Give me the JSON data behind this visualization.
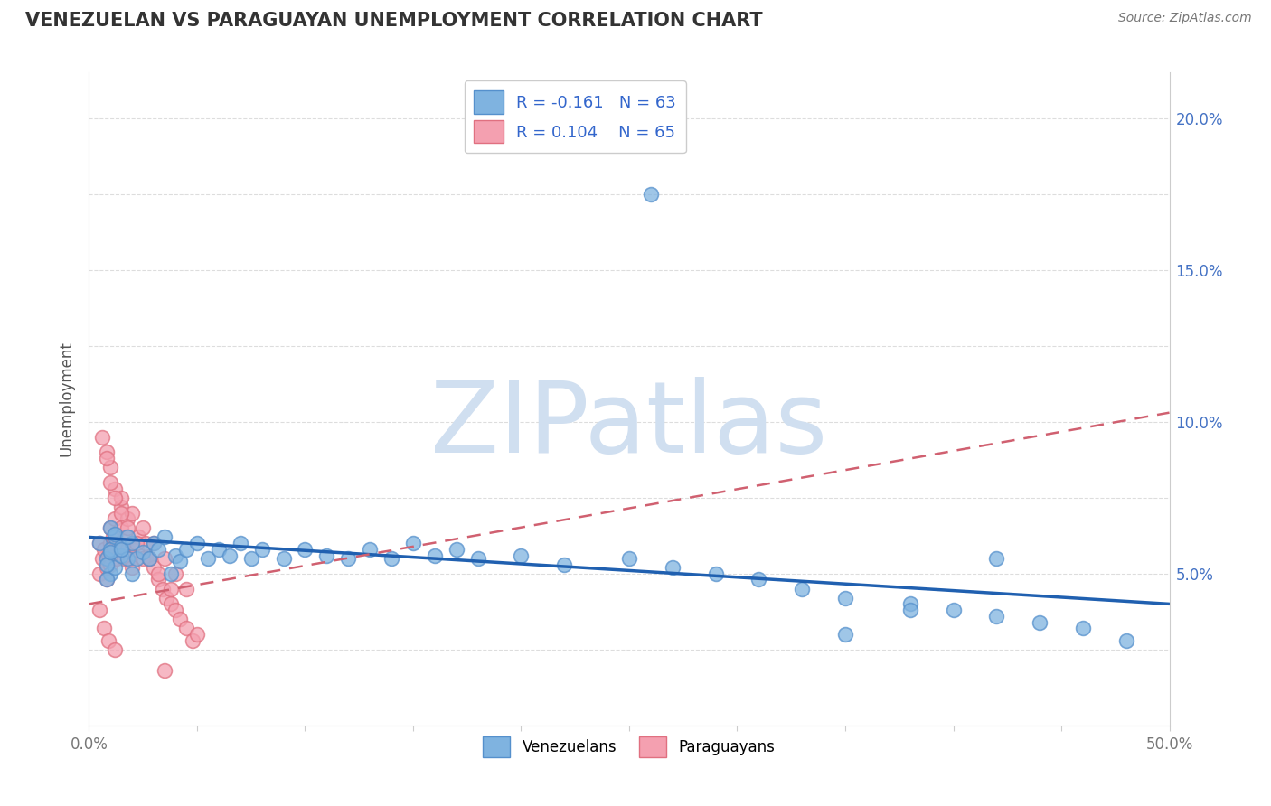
{
  "title": "VENEZUELAN VS PARAGUAYAN UNEMPLOYMENT CORRELATION CHART",
  "source": "Source: ZipAtlas.com",
  "ylabel": "Unemployment",
  "xlim": [
    0.0,
    0.5
  ],
  "ylim": [
    0.0,
    0.215
  ],
  "xtick_positions": [
    0.0,
    0.05,
    0.1,
    0.15,
    0.2,
    0.25,
    0.3,
    0.35,
    0.4,
    0.45,
    0.5
  ],
  "xtick_labels": [
    "0.0%",
    "",
    "",
    "",
    "",
    "",
    "",
    "",
    "",
    "",
    "50.0%"
  ],
  "ytick_positions": [
    0.025,
    0.05,
    0.075,
    0.1,
    0.125,
    0.15,
    0.175,
    0.2
  ],
  "ytick_labels": [
    "",
    "5.0%",
    "",
    "10.0%",
    "",
    "15.0%",
    "",
    "20.0%"
  ],
  "venezuelan_color": "#7fb3e0",
  "paraguayan_color": "#f4a0b0",
  "venezuelan_edge": "#5590cc",
  "paraguayan_edge": "#e07080",
  "blue_line_color": "#2060b0",
  "pink_line_color": "#d06070",
  "R_venezuelan": -0.161,
  "N_venezuelan": 63,
  "R_paraguayan": 0.104,
  "N_paraguayan": 65,
  "legend_venezuelan": "Venezuelans",
  "legend_paraguayan": "Paraguayans",
  "watermark": "ZIPatlas",
  "watermark_color": "#d0dff0",
  "blue_line_x": [
    0.0,
    0.5
  ],
  "blue_line_y": [
    0.062,
    0.04
  ],
  "pink_line_x": [
    0.0,
    0.5
  ],
  "pink_line_y": [
    0.04,
    0.103
  ],
  "venezuelan_x": [
    0.005,
    0.008,
    0.01,
    0.012,
    0.01,
    0.008,
    0.012,
    0.015,
    0.01,
    0.008,
    0.015,
    0.012,
    0.01,
    0.018,
    0.02,
    0.015,
    0.018,
    0.022,
    0.02,
    0.025,
    0.03,
    0.028,
    0.032,
    0.035,
    0.04,
    0.038,
    0.042,
    0.045,
    0.05,
    0.055,
    0.06,
    0.065,
    0.07,
    0.075,
    0.08,
    0.09,
    0.1,
    0.11,
    0.12,
    0.13,
    0.14,
    0.15,
    0.16,
    0.17,
    0.18,
    0.2,
    0.22,
    0.25,
    0.27,
    0.29,
    0.31,
    0.33,
    0.35,
    0.38,
    0.4,
    0.42,
    0.44,
    0.46,
    0.42,
    0.38,
    0.26,
    0.35,
    0.48
  ],
  "venezuelan_y": [
    0.06,
    0.055,
    0.058,
    0.062,
    0.05,
    0.048,
    0.052,
    0.056,
    0.065,
    0.053,
    0.059,
    0.063,
    0.057,
    0.055,
    0.06,
    0.058,
    0.062,
    0.055,
    0.05,
    0.057,
    0.06,
    0.055,
    0.058,
    0.062,
    0.056,
    0.05,
    0.054,
    0.058,
    0.06,
    0.055,
    0.058,
    0.056,
    0.06,
    0.055,
    0.058,
    0.055,
    0.058,
    0.056,
    0.055,
    0.058,
    0.055,
    0.06,
    0.056,
    0.058,
    0.055,
    0.056,
    0.053,
    0.055,
    0.052,
    0.05,
    0.048,
    0.045,
    0.042,
    0.04,
    0.038,
    0.036,
    0.034,
    0.032,
    0.055,
    0.038,
    0.175,
    0.03,
    0.028
  ],
  "paraguayan_x": [
    0.005,
    0.005,
    0.006,
    0.007,
    0.008,
    0.008,
    0.009,
    0.01,
    0.01,
    0.01,
    0.011,
    0.012,
    0.012,
    0.013,
    0.014,
    0.015,
    0.015,
    0.015,
    0.016,
    0.017,
    0.018,
    0.018,
    0.019,
    0.02,
    0.02,
    0.022,
    0.023,
    0.025,
    0.026,
    0.028,
    0.03,
    0.032,
    0.034,
    0.036,
    0.038,
    0.04,
    0.042,
    0.045,
    0.048,
    0.05,
    0.008,
    0.01,
    0.012,
    0.015,
    0.02,
    0.025,
    0.03,
    0.035,
    0.04,
    0.045,
    0.006,
    0.008,
    0.01,
    0.012,
    0.015,
    0.018,
    0.022,
    0.028,
    0.032,
    0.038,
    0.005,
    0.007,
    0.009,
    0.012,
    0.035
  ],
  "paraguayan_y": [
    0.06,
    0.05,
    0.055,
    0.058,
    0.048,
    0.052,
    0.056,
    0.06,
    0.053,
    0.065,
    0.062,
    0.058,
    0.068,
    0.055,
    0.06,
    0.058,
    0.065,
    0.072,
    0.055,
    0.062,
    0.058,
    0.068,
    0.055,
    0.06,
    0.052,
    0.058,
    0.062,
    0.055,
    0.06,
    0.055,
    0.052,
    0.048,
    0.045,
    0.042,
    0.04,
    0.038,
    0.035,
    0.032,
    0.028,
    0.03,
    0.09,
    0.085,
    0.078,
    0.075,
    0.07,
    0.065,
    0.06,
    0.055,
    0.05,
    0.045,
    0.095,
    0.088,
    0.08,
    0.075,
    0.07,
    0.065,
    0.06,
    0.055,
    0.05,
    0.045,
    0.038,
    0.032,
    0.028,
    0.025,
    0.018
  ]
}
